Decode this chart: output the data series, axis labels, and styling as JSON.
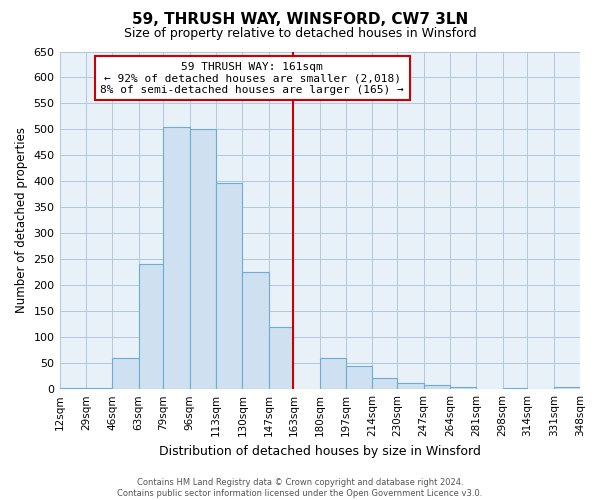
{
  "title": "59, THRUSH WAY, WINSFORD, CW7 3LN",
  "subtitle": "Size of property relative to detached houses in Winsford",
  "xlabel": "Distribution of detached houses by size in Winsford",
  "ylabel": "Number of detached properties",
  "bar_color": "#cfe0f0",
  "bar_edge_color": "#6aadd5",
  "plot_bg_color": "#e8f0f8",
  "bin_edges": [
    12,
    29,
    46,
    63,
    79,
    96,
    113,
    130,
    147,
    163,
    180,
    197,
    214,
    230,
    247,
    264,
    281,
    298,
    314,
    331,
    348
  ],
  "bin_labels": [
    "12sqm",
    "29sqm",
    "46sqm",
    "63sqm",
    "79sqm",
    "96sqm",
    "113sqm",
    "130sqm",
    "147sqm",
    "163sqm",
    "180sqm",
    "197sqm",
    "214sqm",
    "230sqm",
    "247sqm",
    "264sqm",
    "281sqm",
    "298sqm",
    "314sqm",
    "331sqm",
    "348sqm"
  ],
  "counts": [
    2,
    2,
    60,
    240,
    505,
    500,
    397,
    225,
    120,
    0,
    60,
    45,
    22,
    12,
    8,
    5,
    0,
    2,
    0,
    5
  ],
  "property_line_x": 163,
  "ylim": [
    0,
    650
  ],
  "yticks": [
    0,
    50,
    100,
    150,
    200,
    250,
    300,
    350,
    400,
    450,
    500,
    550,
    600,
    650
  ],
  "annotation_title": "59 THRUSH WAY: 161sqm",
  "annotation_line1": "← 92% of detached houses are smaller (2,018)",
  "annotation_line2": "8% of semi-detached houses are larger (165) →",
  "footer_line1": "Contains HM Land Registry data © Crown copyright and database right 2024.",
  "footer_line2": "Contains public sector information licensed under the Open Government Licence v3.0.",
  "background_color": "#ffffff",
  "grid_color": "#b0c8e0",
  "vline_color": "#cc0000",
  "box_edge_color": "#cc0000"
}
